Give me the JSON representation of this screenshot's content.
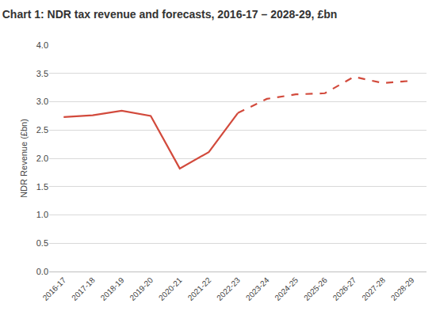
{
  "chart_data": {
    "type": "line",
    "title": "Chart 1: NDR tax revenue and forecasts, 2016-17 – 2028-29, £bn",
    "y_label": "NDR Revenue (£bn)",
    "categories": [
      "2016-17",
      "2017-18",
      "2018-19",
      "2019-20",
      "2020-21",
      "2021-22",
      "2022-23",
      "2023-24",
      "2024-25",
      "2025-26",
      "2026-27",
      "2027-28",
      "2028-29"
    ],
    "series": [
      {
        "color": "#d24a3c",
        "line_style": "solid",
        "values": [
          2.73,
          2.76,
          2.84,
          2.75,
          1.82,
          2.11,
          2.8,
          null,
          null,
          null,
          null,
          null,
          null
        ]
      },
      {
        "color": "#d24a3c",
        "line_style": "dashed",
        "values": [
          null,
          null,
          null,
          null,
          null,
          null,
          2.8,
          3.05,
          3.13,
          3.15,
          3.44,
          3.33,
          3.37
        ]
      }
    ],
    "ylim": [
      0,
      4
    ],
    "yticks": [
      {
        "value": 0,
        "label": "0.0"
      },
      0.5,
      {
        "value": 1,
        "label": "1.0"
      },
      1.5,
      {
        "value": 2,
        "label": "2.0"
      },
      2.5,
      {
        "value": 3,
        "label": "3.0"
      },
      3.5,
      {
        "value": 4,
        "label": "4.0"
      }
    ],
    "grid": true
  }
}
